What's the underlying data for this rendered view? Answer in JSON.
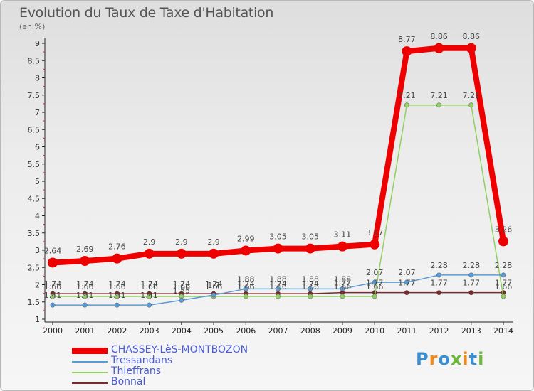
{
  "title": "Evolution du Taux de Taxe d'Habitation",
  "unit_label": "(en %)",
  "logo_text": "Proxiti",
  "chart_data": {
    "type": "line",
    "title": "Evolution du Taux de Taxe d'Habitation",
    "ylabel": "(en %)",
    "x": [
      "2000",
      "2001",
      "2002",
      "2003",
      "2004",
      "2005",
      "2006",
      "2007",
      "2008",
      "2009",
      "2010",
      "2011",
      "2012",
      "2013",
      "2014"
    ],
    "ylim": [
      1,
      9
    ],
    "yticks": [
      "1",
      "1.5",
      "2",
      "2.5",
      "3",
      "3.5",
      "4",
      "4.5",
      "5",
      "5.5",
      "6",
      "6.5",
      "7",
      "7.5",
      "8",
      "8.5",
      "9"
    ],
    "grid": false,
    "legend_position": "bottom-left",
    "series": [
      {
        "name": "CHASSEY-LèS-MONTBOZON",
        "color": "#ee0000",
        "values": [
          2.64,
          2.69,
          2.76,
          2.9,
          2.9,
          2.9,
          2.99,
          3.05,
          3.05,
          3.11,
          3.17,
          8.77,
          8.86,
          8.86,
          3.26
        ],
        "labels": [
          "2.64",
          "2.69",
          "2.76",
          "2.9",
          "2.9",
          "2.9",
          "2.99",
          "3.05",
          "3.05",
          "3.11",
          "3.17",
          "8.77",
          "8.86",
          "8.86",
          "3.26"
        ]
      },
      {
        "name": "Tressandans",
        "color": "#5b9bd5",
        "values": [
          1.41,
          1.41,
          1.41,
          1.41,
          1.55,
          1.7,
          1.88,
          1.88,
          1.88,
          1.88,
          2.07,
          2.07,
          2.28,
          2.28,
          2.28
        ],
        "labels": [
          "1.41",
          "1.41",
          "1.41",
          "1.41",
          "1.55",
          "1.7",
          "1.88",
          "1.88",
          "1.88",
          "1.88",
          "2.07",
          "2.07",
          "2.28",
          "2.28",
          "2.28"
        ]
      },
      {
        "name": "Thieffrans",
        "color": "#90d060",
        "values": [
          1.66,
          1.66,
          1.66,
          1.66,
          1.66,
          1.66,
          1.66,
          1.66,
          1.66,
          1.66,
          1.66,
          7.21,
          7.21,
          7.21,
          1.66
        ],
        "labels": [
          "1.66",
          "1.66",
          "1.66",
          "1.66",
          "1.66",
          "1.66",
          "1.66",
          "1.66",
          "1.66",
          "1.66",
          "1.66",
          "7.21",
          "7.21",
          "7.21",
          "1.66"
        ]
      },
      {
        "name": "Bonnal",
        "color": "#7a2a2a",
        "values": [
          1.74,
          1.74,
          1.74,
          1.74,
          1.74,
          1.74,
          1.74,
          1.74,
          1.74,
          1.77,
          1.77,
          1.77,
          1.77,
          1.77,
          1.77
        ],
        "labels": [
          "1.74",
          "1.74",
          "1.74",
          "1.74",
          "1.74",
          "1.74",
          "1.74",
          "1.74",
          "1.74",
          "1.77",
          "1.77",
          "1.77",
          "1.77",
          "1.77",
          "1.77"
        ]
      }
    ]
  }
}
